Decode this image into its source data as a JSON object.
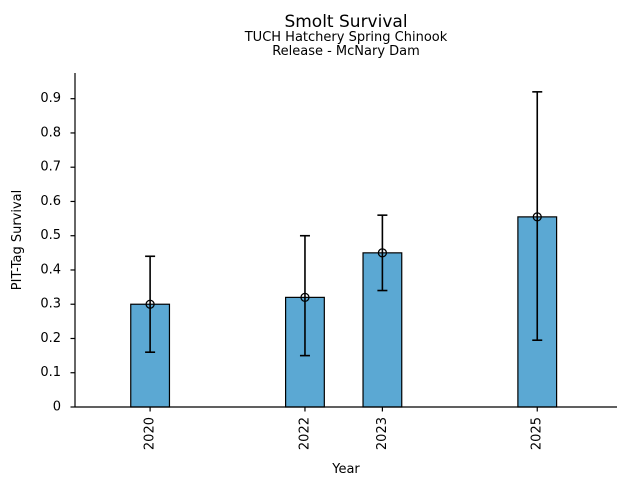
{
  "page": {
    "background_color": "#ffffff",
    "text_color": "#000000"
  },
  "chart_data": {
    "type": "bar",
    "title": "Smolt Survival",
    "subtitle1": "TUCH Hatchery Spring Chinook",
    "subtitle2": "Release - McNary Dam",
    "xlabel": "Year",
    "ylabel": "PIT-Tag Survival",
    "x": [
      2020,
      2022,
      2023,
      2025
    ],
    "categories": [
      "2020",
      "2022",
      "2023",
      "2025"
    ],
    "values": [
      0.3,
      0.32,
      0.45,
      0.555
    ],
    "error_low": [
      0.16,
      0.15,
      0.34,
      0.195
    ],
    "error_high": [
      0.44,
      0.5,
      0.56,
      0.92
    ],
    "yticks": [
      0,
      0.1,
      0.2,
      0.3,
      0.4,
      0.5,
      0.6,
      0.7,
      0.8,
      0.9
    ],
    "ytick_labels": [
      "0",
      "0.1",
      "0.2",
      "0.3",
      "0.4",
      "0.5",
      "0.6",
      "0.7",
      "0.8",
      "0.9"
    ],
    "ylim": [
      0,
      0.975
    ],
    "xlim": [
      2019.03,
      2026.03
    ],
    "x_axis_type": "linear",
    "bar_width_years": 0.5,
    "bar_color": "#5BA8D3",
    "bar_edge_color": "#000000",
    "errorbar_color": "#000000",
    "marker": "open-circle",
    "marker_edge_color": "#000000",
    "grid": false,
    "legend": "none",
    "spines": [
      "left",
      "bottom"
    ],
    "xtick_rotation_deg": 90
  }
}
